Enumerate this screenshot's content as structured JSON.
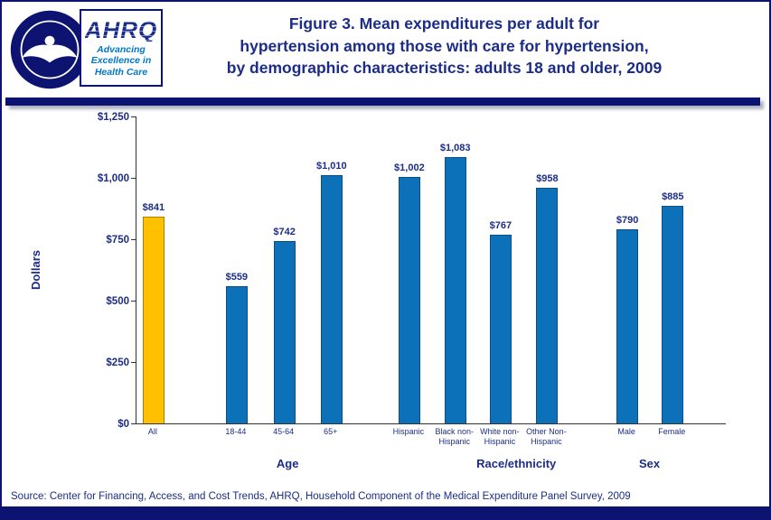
{
  "colors": {
    "navy_text": "#1C2D87",
    "navy_bar": "#0D1370",
    "bar_blue": "#0D71BA",
    "bar_blue_border": "#0A4E84",
    "bar_gold": "#FFC000",
    "bar_gold_border": "#A87E00",
    "tagline_blue": "#0077C8",
    "axis": "#333333"
  },
  "logo": {
    "acronym": "AHRQ",
    "tagline_line1": "Advancing",
    "tagline_line2": "Excellence in",
    "tagline_line3": "Health Care"
  },
  "title": {
    "line1": "Figure 3. Mean expenditures per adult for",
    "line2": "hypertension among those with care for hypertension,",
    "line3": "by demographic characteristics: adults 18 and older, 2009"
  },
  "footer": {
    "source": "Source: Center for Financing, Access, and Cost Trends, AHRQ, Household Component of the Medical Expenditure Panel Survey,  2009"
  },
  "chart_data": {
    "type": "bar",
    "title": "Figure 3. Mean expenditures per adult for hypertension among those with care for hypertension, by demographic characteristics: adults 18 and older, 2009",
    "xlabel": "",
    "ylabel": "Dollars",
    "ylim": [
      0,
      1250
    ],
    "grid": false,
    "legend": null,
    "yticks": [
      {
        "value": 0,
        "label": "$0"
      },
      {
        "value": 250,
        "label": "$250"
      },
      {
        "value": 500,
        "label": "$500"
      },
      {
        "value": 750,
        "label": "$750"
      },
      {
        "value": 1000,
        "label": "$1,000"
      },
      {
        "value": 1250,
        "label": "$1,250"
      }
    ],
    "groups": [
      {
        "label": "",
        "bars": [
          {
            "category": "All",
            "value": 841,
            "label": "$841",
            "highlight": true
          }
        ]
      },
      {
        "label": "Age",
        "bars": [
          {
            "category": "18-44",
            "value": 559,
            "label": "$559"
          },
          {
            "category": "45-64",
            "value": 742,
            "label": "$742"
          },
          {
            "category": "65+",
            "value": 1010,
            "label": "$1,010"
          }
        ]
      },
      {
        "label": "Race/ethnicity",
        "bars": [
          {
            "category": "Hispanic",
            "value": 1002,
            "label": "$1,002"
          },
          {
            "category": "Black non-Hispanic",
            "value": 1083,
            "label": "$1,083"
          },
          {
            "category": "White non-Hispanic",
            "value": 767,
            "label": "$767"
          },
          {
            "category": "Other Non-Hispanic",
            "value": 958,
            "label": "$958"
          }
        ]
      },
      {
        "label": "Sex",
        "bars": [
          {
            "category": "Male",
            "value": 790,
            "label": "$790"
          },
          {
            "category": "Female",
            "value": 885,
            "label": "$885"
          }
        ]
      }
    ]
  }
}
